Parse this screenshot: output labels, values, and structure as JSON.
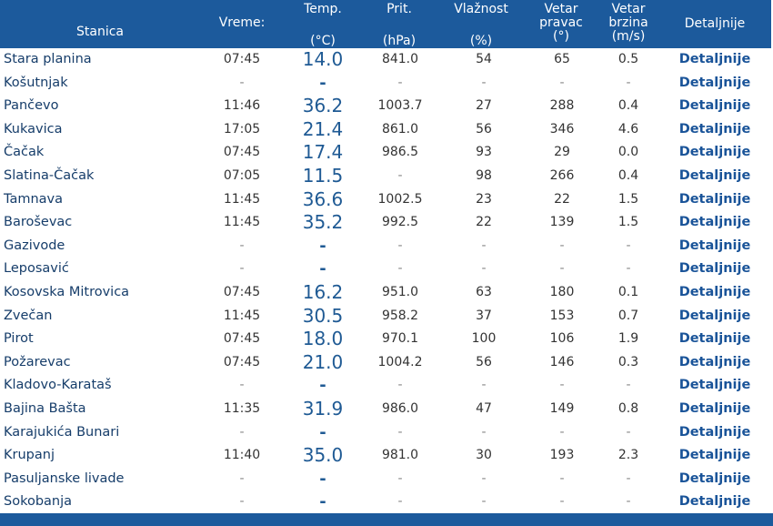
{
  "header": {
    "station": "Stanica",
    "time": "Vreme:",
    "temp": "Temp.",
    "temp_unit": "(°C)",
    "pressure": "Prit.",
    "pressure_unit": "(hPa)",
    "humidity": "Vlažnost",
    "humidity_unit": "(%)",
    "wind_dir_1": "Vetar",
    "wind_dir_2": "pravac",
    "wind_dir_3": "(°)",
    "wind_speed_1": "Vetar",
    "wind_speed_2": "brzina",
    "wind_speed_3": "(m/s)",
    "details": "Detaljnije"
  },
  "rows": [
    {
      "name": "Stara planina",
      "time": "07:45",
      "temp": "14.0",
      "pressure": "841.0",
      "humidity": "54",
      "dir": "65",
      "speed": "0.5",
      "details": "Detaljnije"
    },
    {
      "name": "Košutnjak",
      "time": "-",
      "temp": "-",
      "pressure": "-",
      "humidity": "-",
      "dir": "-",
      "speed": "-",
      "details": "Detaljnije"
    },
    {
      "name": "Pančevo",
      "time": "11:46",
      "temp": "36.2",
      "pressure": "1003.7",
      "humidity": "27",
      "dir": "288",
      "speed": "0.4",
      "details": "Detaljnije"
    },
    {
      "name": "Kukavica",
      "time": "17:05",
      "temp": "21.4",
      "pressure": "861.0",
      "humidity": "56",
      "dir": "346",
      "speed": "4.6",
      "details": "Detaljnije"
    },
    {
      "name": "Čačak",
      "time": "07:45",
      "temp": "17.4",
      "pressure": "986.5",
      "humidity": "93",
      "dir": "29",
      "speed": "0.0",
      "details": "Detaljnije"
    },
    {
      "name": "Slatina-Čačak",
      "time": "07:05",
      "temp": "11.5",
      "pressure": "-",
      "humidity": "98",
      "dir": "266",
      "speed": "0.4",
      "details": "Detaljnije"
    },
    {
      "name": "Tamnava",
      "time": "11:45",
      "temp": "36.6",
      "pressure": "1002.5",
      "humidity": "23",
      "dir": "22",
      "speed": "1.5",
      "details": "Detaljnije"
    },
    {
      "name": "Baroševac",
      "time": "11:45",
      "temp": "35.2",
      "pressure": "992.5",
      "humidity": "22",
      "dir": "139",
      "speed": "1.5",
      "details": "Detaljnije"
    },
    {
      "name": "Gazivode",
      "time": "-",
      "temp": "-",
      "pressure": "-",
      "humidity": "-",
      "dir": "-",
      "speed": "-",
      "details": "Detaljnije"
    },
    {
      "name": "Leposavić",
      "time": "-",
      "temp": "-",
      "pressure": "-",
      "humidity": "-",
      "dir": "-",
      "speed": "-",
      "details": "Detaljnije"
    },
    {
      "name": "Kosovska Mitrovica",
      "time": "07:45",
      "temp": "16.2",
      "pressure": "951.0",
      "humidity": "63",
      "dir": "180",
      "speed": "0.1",
      "details": "Detaljnije"
    },
    {
      "name": "Zvečan",
      "time": "11:45",
      "temp": "30.5",
      "pressure": "958.2",
      "humidity": "37",
      "dir": "153",
      "speed": "0.7",
      "details": "Detaljnije"
    },
    {
      "name": "Pirot",
      "time": "07:45",
      "temp": "18.0",
      "pressure": "970.1",
      "humidity": "100",
      "dir": "106",
      "speed": "1.9",
      "details": "Detaljnije"
    },
    {
      "name": "Požarevac",
      "time": "07:45",
      "temp": "21.0",
      "pressure": "1004.2",
      "humidity": "56",
      "dir": "146",
      "speed": "0.3",
      "details": "Detaljnije"
    },
    {
      "name": "Kladovo-Karataš",
      "time": "-",
      "temp": "-",
      "pressure": "-",
      "humidity": "-",
      "dir": "-",
      "speed": "-",
      "details": "Detaljnije"
    },
    {
      "name": "Bajina Bašta",
      "time": "11:35",
      "temp": "31.9",
      "pressure": "986.0",
      "humidity": "47",
      "dir": "149",
      "speed": "0.8",
      "details": "Detaljnije"
    },
    {
      "name": "Karajukića Bunari",
      "time": "-",
      "temp": "-",
      "pressure": "-",
      "humidity": "-",
      "dir": "-",
      "speed": "-",
      "details": "Detaljnije"
    },
    {
      "name": "Krupanj",
      "time": "11:40",
      "temp": "35.0",
      "pressure": "981.0",
      "humidity": "30",
      "dir": "193",
      "speed": "2.3",
      "details": "Detaljnije"
    },
    {
      "name": "Pasuljanske livade",
      "time": "-",
      "temp": "-",
      "pressure": "-",
      "humidity": "-",
      "dir": "-",
      "speed": "-",
      "details": "Detaljnije"
    },
    {
      "name": "Sokobanja",
      "time": "-",
      "temp": "-",
      "pressure": "-",
      "humidity": "-",
      "dir": "-",
      "speed": "-",
      "details": "Detaljnije"
    }
  ],
  "colors": {
    "header_bg": "#1c5a9c",
    "link": "#1a5499",
    "temp": "#1f5a94"
  }
}
